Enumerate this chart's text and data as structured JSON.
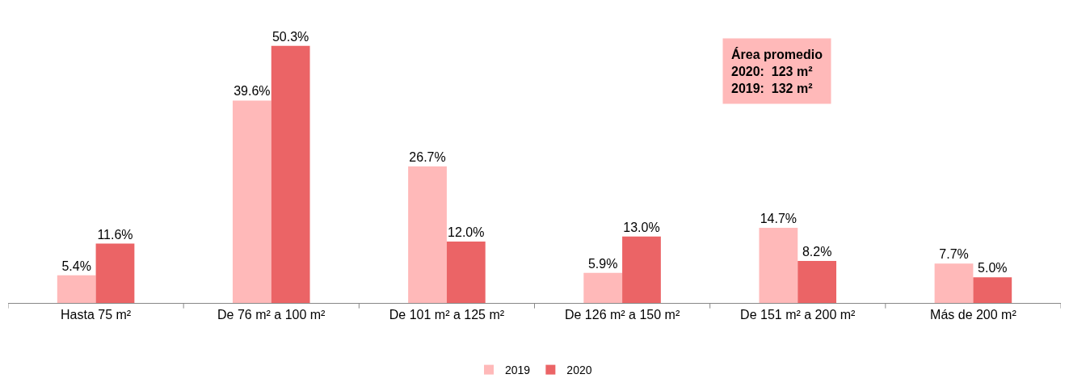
{
  "chart_data": {
    "type": "bar",
    "categories": [
      "Hasta 75 m²",
      "De 76 m² a 100 m²",
      "De 101 m² a 125 m²",
      "De 126 m² a 150 m²",
      "De 151 m² a 200 m²",
      "Más de 200 m²"
    ],
    "series": [
      {
        "name": "2019",
        "color": "#ffb9b9",
        "values": [
          5.4,
          39.6,
          26.7,
          5.9,
          14.7,
          7.7
        ],
        "value_labels": [
          "5.4%",
          "39.6%",
          "26.7%",
          "5.9%",
          "14.7%",
          "7.7%"
        ]
      },
      {
        "name": "2020",
        "color": "#eb6466",
        "values": [
          11.6,
          50.3,
          12.0,
          13.0,
          8.2,
          5.0
        ],
        "value_labels": [
          "11.6%",
          "50.3%",
          "12.0%",
          "13.0%",
          "8.2%",
          "5.0%"
        ]
      }
    ],
    "annotations": [
      "Área promedio\n2020:  123 m²\n2019:  132 m²"
    ],
    "legend": "bottom"
  }
}
